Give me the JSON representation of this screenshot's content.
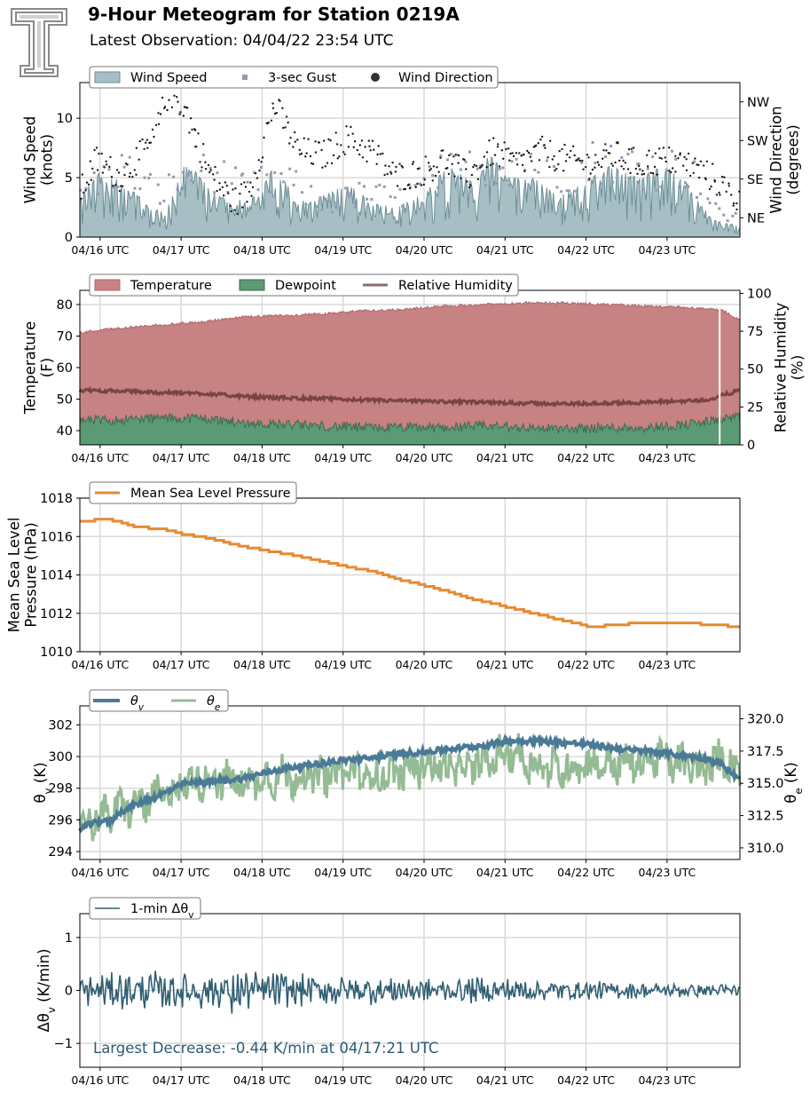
{
  "header": {
    "title": "9-Hour Meteogram for Station 0219A",
    "subtitle": "Latest Observation: 04/04/22 23:54 UTC",
    "logo_text": "T"
  },
  "colors": {
    "wind_fill": "#a7bfc4",
    "wind_line": "#6b8f96",
    "gust": "#9e95b3",
    "direction": "#1a1a1a",
    "temperature": "#c78284",
    "temperature_line": "#b06669",
    "dewpoint": "#5a9a74",
    "dewpoint_line": "#3d6b4e",
    "rh": "#7b4444",
    "mslp": "#e68a32",
    "theta_v": "#4a7a96",
    "theta_e": "#94bb94",
    "dtheta": "#305e72",
    "grid": "#d9d9d9"
  },
  "chart_data": [
    {
      "type": "area",
      "name": "wind",
      "x_ticks": [
        "04/16 UTC",
        "04/17 UTC",
        "04/18 UTC",
        "04/19 UTC",
        "04/20 UTC",
        "04/21 UTC",
        "04/22 UTC",
        "04/23 UTC"
      ],
      "xlim": [
        0,
        8.15
      ],
      "ylabel": "Wind Speed\n(knots)",
      "ylim": [
        0,
        13
      ],
      "yticks": [
        0,
        5,
        10
      ],
      "y2label": "Wind Direction\n(degrees)",
      "y2lim": [
        0,
        360
      ],
      "y2ticks": [
        {
          "label": "NE",
          "value": 45
        },
        {
          "label": "SE",
          "value": 135
        },
        {
          "label": "SW",
          "value": 225
        },
        {
          "label": "NW",
          "value": 315
        }
      ],
      "legend": [
        "Wind Speed",
        "3-sec Gust",
        "Wind Direction"
      ],
      "grid": true,
      "series": {
        "wind_speed_peaks": [
          [
            0.0,
            3.0
          ],
          [
            0.2,
            5.5
          ],
          [
            0.45,
            5.0
          ],
          [
            0.9,
            2.5
          ],
          [
            1.05,
            2.0
          ],
          [
            1.3,
            6.5
          ],
          [
            1.55,
            4.5
          ],
          [
            1.9,
            3.0
          ],
          [
            2.2,
            3.5
          ],
          [
            2.4,
            6.0
          ],
          [
            2.7,
            3.0
          ],
          [
            3.0,
            3.5
          ],
          [
            3.3,
            4.5
          ],
          [
            3.6,
            3.0
          ],
          [
            3.9,
            2.5
          ],
          [
            4.2,
            3.5
          ],
          [
            4.55,
            6.0
          ],
          [
            4.9,
            4.5
          ],
          [
            5.05,
            7.0
          ],
          [
            5.3,
            5.0
          ],
          [
            5.6,
            5.0
          ],
          [
            5.9,
            3.5
          ],
          [
            6.2,
            4.5
          ],
          [
            6.55,
            6.0
          ],
          [
            6.9,
            5.0
          ],
          [
            7.2,
            6.0
          ],
          [
            7.5,
            4.5
          ],
          [
            7.8,
            1.5
          ],
          [
            8.1,
            1.0
          ]
        ],
        "gust_approx": [
          [
            0.0,
            4.0
          ],
          [
            0.5,
            6.5
          ],
          [
            1.0,
            4.0
          ],
          [
            1.5,
            7.0
          ],
          [
            2.0,
            4.5
          ],
          [
            2.5,
            5.5
          ],
          [
            3.0,
            3.0
          ],
          [
            3.5,
            4.0
          ],
          [
            4.0,
            3.5
          ],
          [
            4.5,
            6.0
          ],
          [
            5.0,
            6.5
          ],
          [
            5.5,
            7.5
          ],
          [
            6.0,
            6.0
          ],
          [
            6.5,
            7.5
          ],
          [
            7.0,
            6.5
          ],
          [
            7.5,
            6.5
          ],
          [
            7.9,
            2.0
          ],
          [
            8.1,
            2.0
          ]
        ],
        "direction_approx": [
          [
            0.0,
            100
          ],
          [
            0.2,
            180
          ],
          [
            0.5,
            140
          ],
          [
            0.9,
            220
          ],
          [
            1.1,
            340
          ],
          [
            1.3,
            300
          ],
          [
            1.6,
            150
          ],
          [
            1.9,
            80
          ],
          [
            2.1,
            110
          ],
          [
            2.4,
            310
          ],
          [
            2.7,
            200
          ],
          [
            3.0,
            190
          ],
          [
            3.3,
            230
          ],
          [
            3.6,
            200
          ],
          [
            3.9,
            140
          ],
          [
            4.2,
            150
          ],
          [
            4.5,
            180
          ],
          [
            4.8,
            140
          ],
          [
            5.1,
            200
          ],
          [
            5.4,
            170
          ],
          [
            5.7,
            200
          ],
          [
            6.0,
            180
          ],
          [
            6.3,
            170
          ],
          [
            6.6,
            190
          ],
          [
            6.9,
            170
          ],
          [
            7.2,
            180
          ],
          [
            7.5,
            170
          ],
          [
            7.8,
            140
          ],
          [
            8.1,
            90
          ]
        ]
      }
    },
    {
      "type": "area",
      "name": "temperature",
      "x_ticks": [
        "04/16 UTC",
        "04/17 UTC",
        "04/18 UTC",
        "04/19 UTC",
        "04/20 UTC",
        "04/21 UTC",
        "04/22 UTC",
        "04/23 UTC"
      ],
      "xlim": [
        0,
        8.15
      ],
      "ylabel": "Temperature\n(F)",
      "ylim": [
        35.5,
        84.5
      ],
      "yticks": [
        40,
        50,
        60,
        70,
        80
      ],
      "y2label": "Relative Humidity\n(%)",
      "y2lim": [
        0,
        102
      ],
      "y2ticks": [
        0,
        25,
        50,
        75,
        100
      ],
      "legend": [
        "Temperature",
        "Dewpoint",
        "Relative Humidity"
      ],
      "grid": true,
      "series": {
        "temperature": [
          [
            0.0,
            71
          ],
          [
            0.25,
            72
          ],
          [
            0.5,
            72.5
          ],
          [
            1.0,
            73.5
          ],
          [
            1.5,
            74.5
          ],
          [
            2.0,
            76
          ],
          [
            2.5,
            76.5
          ],
          [
            3.0,
            77
          ],
          [
            3.5,
            78
          ],
          [
            4.0,
            78.5
          ],
          [
            4.5,
            79.5
          ],
          [
            5.0,
            80
          ],
          [
            5.5,
            80.5
          ],
          [
            6.0,
            80.5
          ],
          [
            6.5,
            80
          ],
          [
            7.0,
            79.5
          ],
          [
            7.5,
            79
          ],
          [
            7.8,
            78.5
          ],
          [
            7.95,
            78
          ],
          [
            8.15,
            75
          ]
        ],
        "dewpoint": [
          [
            0.0,
            43
          ],
          [
            0.5,
            43.5
          ],
          [
            1.0,
            44
          ],
          [
            1.5,
            44
          ],
          [
            2.0,
            42.5
          ],
          [
            2.5,
            42
          ],
          [
            3.0,
            41.5
          ],
          [
            3.5,
            41
          ],
          [
            4.0,
            41
          ],
          [
            4.5,
            41
          ],
          [
            5.0,
            41.5
          ],
          [
            5.5,
            41
          ],
          [
            6.0,
            40.5
          ],
          [
            6.5,
            41
          ],
          [
            7.0,
            41
          ],
          [
            7.5,
            42
          ],
          [
            7.8,
            43
          ],
          [
            7.95,
            44
          ],
          [
            8.15,
            44
          ]
        ],
        "relative_humidity": [
          [
            0.0,
            36
          ],
          [
            0.5,
            35.5
          ],
          [
            1.0,
            34.5
          ],
          [
            1.5,
            34
          ],
          [
            2.0,
            32
          ],
          [
            2.5,
            31
          ],
          [
            3.0,
            30.5
          ],
          [
            3.5,
            29.5
          ],
          [
            4.0,
            29
          ],
          [
            4.5,
            28.5
          ],
          [
            5.0,
            28
          ],
          [
            5.5,
            27.5
          ],
          [
            6.0,
            27
          ],
          [
            6.5,
            27.5
          ],
          [
            7.0,
            28
          ],
          [
            7.5,
            29
          ],
          [
            7.8,
            30
          ],
          [
            7.95,
            33
          ],
          [
            8.15,
            36
          ]
        ]
      }
    },
    {
      "type": "line",
      "name": "pressure",
      "x_ticks": [
        "04/16 UTC",
        "04/17 UTC",
        "04/18 UTC",
        "04/19 UTC",
        "04/20 UTC",
        "04/21 UTC",
        "04/22 UTC",
        "04/23 UTC"
      ],
      "xlim": [
        0,
        8.15
      ],
      "ylabel": "Mean Sea Level\nPressure (hPa)",
      "ylim": [
        1010,
        1018
      ],
      "yticks": [
        1010,
        1012,
        1014,
        1016,
        1018
      ],
      "legend": [
        "Mean Sea Level Pressure"
      ],
      "grid": true,
      "series": [
        {
          "name": "Mean Sea Level Pressure",
          "points": [
            [
              0.0,
              1016.8
            ],
            [
              0.3,
              1016.9
            ],
            [
              0.45,
              1016.8
            ],
            [
              0.7,
              1016.5
            ],
            [
              1.0,
              1016.4
            ],
            [
              1.3,
              1016.1
            ],
            [
              1.6,
              1015.9
            ],
            [
              2.0,
              1015.5
            ],
            [
              2.4,
              1015.2
            ],
            [
              2.8,
              1014.9
            ],
            [
              3.2,
              1014.5
            ],
            [
              3.6,
              1014.2
            ],
            [
              4.0,
              1013.7
            ],
            [
              4.4,
              1013.3
            ],
            [
              4.8,
              1012.8
            ],
            [
              5.2,
              1012.4
            ],
            [
              5.6,
              1012.0
            ],
            [
              6.0,
              1011.6
            ],
            [
              6.3,
              1011.3
            ],
            [
              6.6,
              1011.4
            ],
            [
              6.9,
              1011.5
            ],
            [
              7.2,
              1011.5
            ],
            [
              7.5,
              1011.5
            ],
            [
              7.8,
              1011.4
            ],
            [
              8.15,
              1011.3
            ]
          ]
        }
      ]
    },
    {
      "type": "line",
      "name": "theta",
      "x_ticks": [
        "04/16 UTC",
        "04/17 UTC",
        "04/18 UTC",
        "04/19 UTC",
        "04/20 UTC",
        "04/21 UTC",
        "04/22 UTC",
        "04/23 UTC"
      ],
      "xlim": [
        0,
        8.15
      ],
      "ylabel": "θv (K)",
      "ylim": [
        293.5,
        303.2
      ],
      "yticks": [
        294,
        296,
        298,
        300,
        302
      ],
      "y2label": "θe (K)",
      "y2lim": [
        309.1,
        321.0
      ],
      "y2ticks": [
        310.0,
        312.5,
        315.0,
        317.5,
        320.0
      ],
      "legend": [
        "θv",
        "θe"
      ],
      "grid": true,
      "series": {
        "theta_v": [
          [
            0.0,
            295.5
          ],
          [
            0.3,
            296.0
          ],
          [
            0.35,
            295.8
          ],
          [
            0.5,
            296.5
          ],
          [
            0.8,
            297.2
          ],
          [
            1.0,
            297.6
          ],
          [
            1.3,
            298.3
          ],
          [
            1.6,
            298.4
          ],
          [
            2.0,
            298.6
          ],
          [
            2.3,
            299.0
          ],
          [
            2.6,
            299.3
          ],
          [
            3.0,
            299.6
          ],
          [
            3.3,
            299.8
          ],
          [
            3.6,
            299.9
          ],
          [
            4.0,
            300.2
          ],
          [
            4.3,
            300.3
          ],
          [
            4.6,
            300.5
          ],
          [
            5.0,
            300.7
          ],
          [
            5.3,
            301.0
          ],
          [
            5.6,
            301.0
          ],
          [
            5.9,
            300.9
          ],
          [
            6.2,
            300.8
          ],
          [
            6.5,
            300.6
          ],
          [
            6.8,
            300.4
          ],
          [
            7.1,
            300.3
          ],
          [
            7.4,
            300.1
          ],
          [
            7.7,
            299.9
          ],
          [
            7.9,
            299.6
          ],
          [
            8.15,
            298.5
          ]
        ],
        "theta_e": [
          [
            0.0,
            312.0
          ],
          [
            0.3,
            312.5
          ],
          [
            0.5,
            313.0
          ],
          [
            0.8,
            313.5
          ],
          [
            1.0,
            314.0
          ],
          [
            1.3,
            315.0
          ],
          [
            1.6,
            315.5
          ],
          [
            2.0,
            315.0
          ],
          [
            2.3,
            315.5
          ],
          [
            2.6,
            315.5
          ],
          [
            3.0,
            315.5
          ],
          [
            3.3,
            316.0
          ],
          [
            3.6,
            315.5
          ],
          [
            4.0,
            316.0
          ],
          [
            4.3,
            316.5
          ],
          [
            4.6,
            316.0
          ],
          [
            5.0,
            316.5
          ],
          [
            5.3,
            317.5
          ],
          [
            5.6,
            316.5
          ],
          [
            5.9,
            316.0
          ],
          [
            6.2,
            316.5
          ],
          [
            6.5,
            316.5
          ],
          [
            6.8,
            316.5
          ],
          [
            7.1,
            317.0
          ],
          [
            7.4,
            316.5
          ],
          [
            7.7,
            316.0
          ],
          [
            7.95,
            317.0
          ],
          [
            8.15,
            316.0
          ]
        ]
      }
    },
    {
      "type": "line",
      "name": "dtheta",
      "x_ticks": [
        "04/16 UTC",
        "04/17 UTC",
        "04/18 UTC",
        "04/19 UTC",
        "04/20 UTC",
        "04/21 UTC",
        "04/22 UTC",
        "04/23 UTC"
      ],
      "xlim": [
        0,
        8.15
      ],
      "ylabel": "Δθv (K/min)",
      "ylim": [
        -1.45,
        1.45
      ],
      "yticks": [
        -1,
        0,
        1
      ],
      "legend": [
        "1-min Δθv"
      ],
      "grid": true,
      "amplitude_approx": [
        [
          0.0,
          0.25
        ],
        [
          1.0,
          0.3
        ],
        [
          2.0,
          0.3
        ],
        [
          3.0,
          0.25
        ],
        [
          4.0,
          0.2
        ],
        [
          5.0,
          0.2
        ],
        [
          6.0,
          0.15
        ],
        [
          7.0,
          0.12
        ],
        [
          8.15,
          0.1
        ]
      ],
      "annotation": "Largest Decrease: -0.44 K/min at 04/17:21 UTC"
    }
  ]
}
